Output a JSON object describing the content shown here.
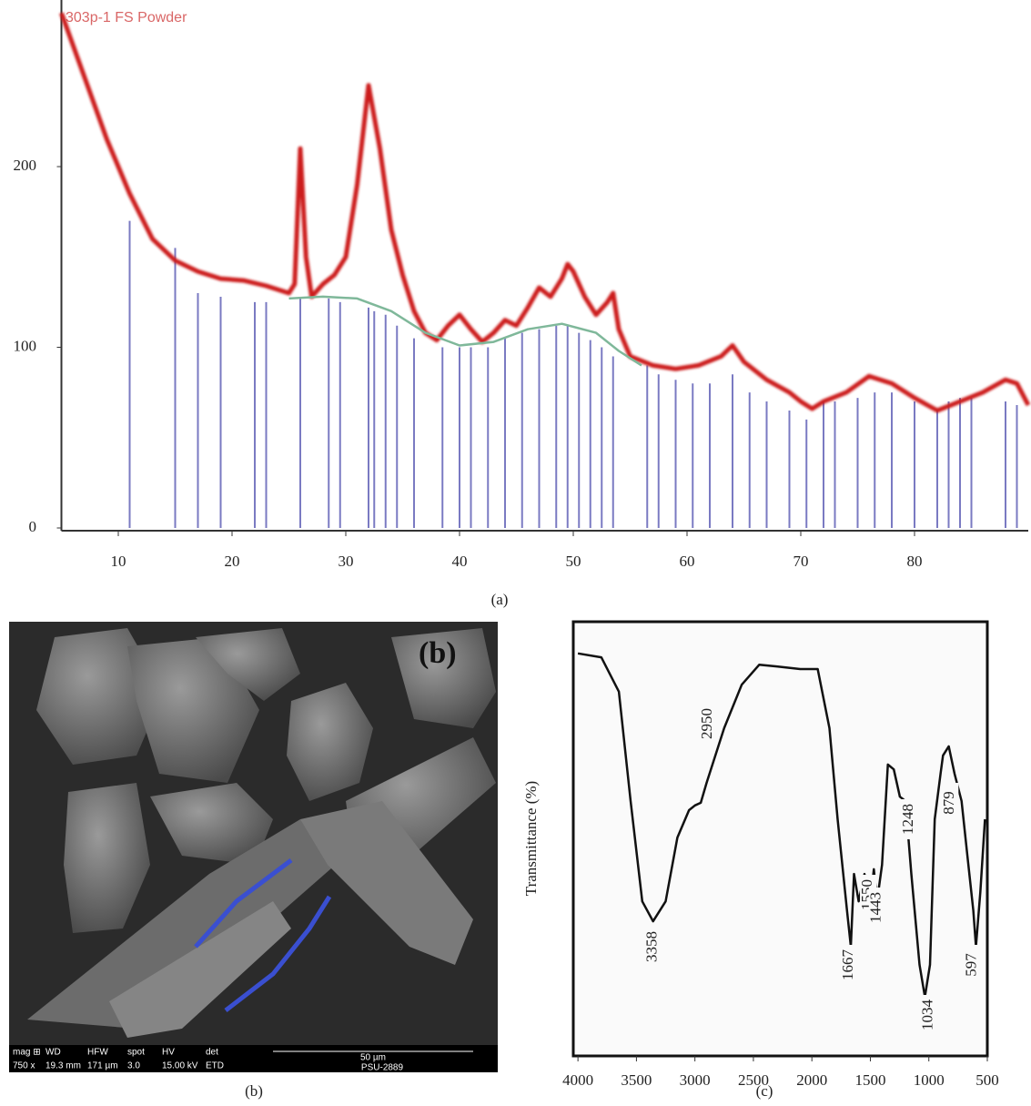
{
  "chart_data": [
    {
      "type": "line",
      "title": "303p-1 FS Powder",
      "xlim": [
        5,
        90
      ],
      "xticks": [
        10,
        20,
        30,
        40,
        50,
        60,
        70,
        80
      ],
      "ylim": [
        0,
        290
      ],
      "yticks": [
        0,
        100,
        200
      ],
      "series": [
        {
          "color": "#cc1a1a",
          "style": "line",
          "x": [
            5,
            7,
            9,
            11,
            13,
            15,
            17,
            19,
            21,
            23,
            25,
            25.5,
            26,
            26.5,
            27,
            28,
            29,
            30,
            31,
            32,
            33,
            34,
            35,
            36,
            37,
            38,
            39,
            40,
            41,
            42,
            43,
            44,
            45,
            46,
            47,
            48,
            49,
            49.5,
            50,
            51,
            52,
            53,
            53.5,
            54,
            55,
            57,
            59,
            61,
            63,
            64,
            65,
            67,
            69,
            70,
            71,
            72,
            74,
            76,
            78,
            80,
            82,
            84,
            86,
            88,
            89,
            90
          ],
          "values": [
            285,
            250,
            215,
            185,
            160,
            148,
            142,
            138,
            137,
            134,
            130,
            135,
            210,
            150,
            128,
            135,
            140,
            150,
            190,
            245,
            210,
            165,
            140,
            120,
            108,
            104,
            112,
            118,
            110,
            103,
            108,
            115,
            112,
            122,
            133,
            128,
            138,
            146,
            142,
            128,
            118,
            125,
            130,
            110,
            95,
            90,
            88,
            90,
            95,
            101,
            92,
            82,
            75,
            70,
            66,
            70,
            75,
            84,
            80,
            72,
            65,
            70,
            75,
            82,
            80,
            68
          ]
        },
        {
          "color": "#7fb89a",
          "style": "line",
          "x": [
            25,
            28,
            31,
            34,
            37,
            40,
            43,
            46,
            49,
            52,
            54,
            56
          ],
          "values": [
            127,
            128,
            127,
            120,
            108,
            101,
            103,
            110,
            113,
            108,
            98,
            90
          ]
        },
        {
          "color": "#5a5ab4",
          "style": "stick",
          "x": [
            11,
            15,
            17,
            19,
            22,
            23,
            26,
            28.5,
            29.5,
            32,
            32.5,
            33.5,
            34.5,
            36,
            38.5,
            40,
            41,
            42.5,
            44,
            45.5,
            47,
            48.5,
            49.5,
            50.5,
            51.5,
            52.5,
            53.5,
            56.5,
            57.5,
            59,
            60.5,
            62,
            64,
            65.5,
            67,
            69,
            70.5,
            72,
            73,
            75,
            76.5,
            78,
            80,
            82,
            83,
            84,
            85,
            88,
            89
          ],
          "values": [
            170,
            155,
            130,
            128,
            125,
            125,
            127,
            127,
            125,
            122,
            120,
            118,
            112,
            105,
            100,
            100,
            100,
            100,
            105,
            108,
            110,
            112,
            112,
            108,
            104,
            100,
            95,
            90,
            85,
            82,
            80,
            80,
            85,
            75,
            70,
            65,
            60,
            70,
            70,
            72,
            75,
            75,
            70,
            65,
            70,
            72,
            72,
            70,
            68
          ]
        }
      ]
    },
    {
      "type": "line",
      "ylabel": "Transmittance (%)",
      "xlim": [
        4040,
        500
      ],
      "xticks": [
        4000,
        3500,
        3000,
        2500,
        2000,
        1500,
        1000,
        500
      ],
      "ylim": [
        0,
        100
      ],
      "series": [
        {
          "color": "#111111",
          "style": "line",
          "x": [
            4000,
            3800,
            3650,
            3550,
            3450,
            3358,
            3250,
            3150,
            3050,
            3000,
            2950,
            2900,
            2750,
            2600,
            2450,
            2300,
            2100,
            1950,
            1850,
            1780,
            1700,
            1667,
            1640,
            1600,
            1550,
            1500,
            1470,
            1443,
            1400,
            1350,
            1300,
            1248,
            1200,
            1150,
            1080,
            1034,
            990,
            950,
            900,
            879,
            830,
            780,
            720,
            670,
            620,
            597,
            560,
            520
          ],
          "values": [
            92.7,
            91.8,
            83.9,
            58.7,
            35.6,
            31,
            35.6,
            50.3,
            56.6,
            57.7,
            58.3,
            62.9,
            75.5,
            85.5,
            90.1,
            89.7,
            89.1,
            89.1,
            75.5,
            54.5,
            33.5,
            25.2,
            41.9,
            35.6,
            41.9,
            35.6,
            43,
            35.6,
            44,
            67.1,
            66,
            59.7,
            58.7,
            41.9,
            21,
            13.6,
            21,
            54.5,
            65,
            69.2,
            71.3,
            65,
            58.7,
            46.1,
            33.5,
            25.2,
            37.7,
            54.5
          ]
        }
      ],
      "peak_labels": [
        3358,
        2950,
        1667,
        1550,
        1443,
        1248,
        1034,
        879,
        597
      ]
    }
  ],
  "sem": {
    "panel_label": "(b)",
    "info": [
      [
        "mag ⊞",
        "750 x"
      ],
      [
        "WD",
        "19.3 mm"
      ],
      [
        "HFW",
        "171 µm"
      ],
      [
        "spot",
        "3.0"
      ],
      [
        "HV",
        "15.00 kV"
      ],
      [
        "det",
        "ETD"
      ]
    ],
    "scale_bar": "50 µm",
    "sample": "PSU-2889"
  },
  "captions": {
    "a": "(a)",
    "b": "(b)",
    "c": "(c)"
  }
}
